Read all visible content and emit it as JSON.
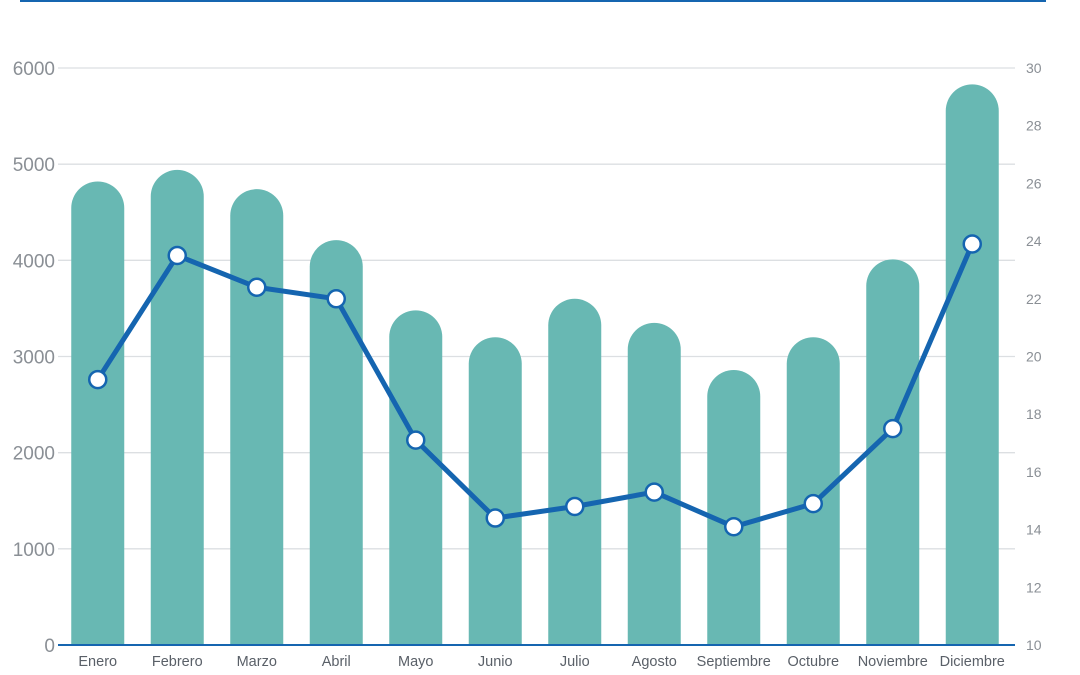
{
  "chart_data": {
    "type": "bar",
    "title": "",
    "xlabel": "",
    "ylabel": "",
    "y2label": "",
    "categories": [
      "Enero",
      "Febrero",
      "Marzo",
      "Abril",
      "Mayo",
      "Junio",
      "Julio",
      "Agosto",
      "Septiembre",
      "Octubre",
      "Noviembre",
      "Diciembre"
    ],
    "series": [
      {
        "type": "bar",
        "axis": "left",
        "values": [
          4820,
          4940,
          4740,
          4210,
          3480,
          3200,
          3600,
          3350,
          2860,
          3200,
          4010,
          5830
        ]
      },
      {
        "type": "line",
        "axis": "right",
        "values": [
          19.2,
          23.5,
          22.4,
          22.0,
          17.1,
          14.4,
          14.8,
          15.3,
          14.1,
          14.9,
          17.5,
          23.9
        ]
      }
    ],
    "ylim": [
      0,
      6000
    ],
    "yticks": [
      "0",
      "1000",
      "2000",
      "3000",
      "4000",
      "5000",
      "6000"
    ],
    "y2lim": [
      10,
      30
    ],
    "y2ticks": [
      "10",
      "12",
      "14",
      "16",
      "18",
      "20",
      "22",
      "24",
      "26",
      "28",
      "30"
    ],
    "grid": true,
    "legend": "none",
    "colors": {
      "bars": "#68b8b3",
      "line": "#1565b0",
      "marker_fill": "#ffffff",
      "axis": "#1565b0",
      "grid": "#dcdfe2"
    }
  }
}
